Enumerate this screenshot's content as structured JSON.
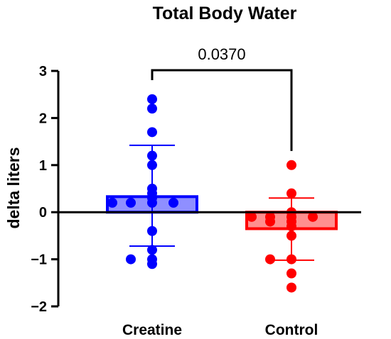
{
  "chart_data": {
    "type": "bar",
    "title": "Total Body Water",
    "ylabel": "delta liters",
    "xlabel": "",
    "ylim": [
      -2,
      3
    ],
    "yticks": [
      "-2",
      "-1",
      "0",
      "1",
      "2",
      "3"
    ],
    "grid": false,
    "categories": [
      "Creatine",
      "Control"
    ],
    "bars": [
      {
        "category": "Creatine",
        "mean": 0.33,
        "error_low": -0.72,
        "error_high": 1.42,
        "fill_color": "#8f8fff",
        "edge_color": "#0000ff",
        "point_color": "#0000ff",
        "points": [
          2.4,
          2.2,
          1.7,
          1.2,
          1.0,
          0.5,
          0.4,
          0.3,
          0.2,
          0.2,
          0.2,
          0.2,
          -0.4,
          -0.8,
          -1.0,
          -1.0,
          -1.1
        ]
      },
      {
        "category": "Control",
        "mean": -0.35,
        "error_low": -1.02,
        "error_high": 0.3,
        "fill_color": "#ff8f8f",
        "edge_color": "#ff0000",
        "point_color": "#ff0000",
        "points": [
          1.0,
          0.4,
          0.0,
          -0.1,
          -0.1,
          -0.1,
          -0.1,
          -0.2,
          -0.2,
          -0.3,
          -0.5,
          -1.0,
          -1.0,
          -1.3,
          -1.6
        ]
      }
    ],
    "significance": {
      "between": [
        "Creatine",
        "Control"
      ],
      "label": "0.0370"
    }
  }
}
